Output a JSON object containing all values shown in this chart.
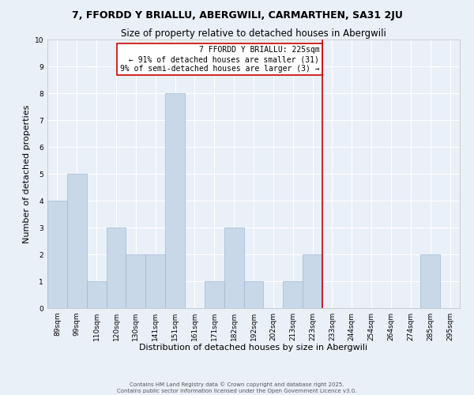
{
  "title": "7, FFORDD Y BRIALLU, ABERGWILI, CARMARTHEN, SA31 2JU",
  "subtitle": "Size of property relative to detached houses in Abergwili",
  "xlabel": "Distribution of detached houses by size in Abergwili",
  "ylabel": "Number of detached properties",
  "bins": [
    "89sqm",
    "99sqm",
    "110sqm",
    "120sqm",
    "130sqm",
    "141sqm",
    "151sqm",
    "161sqm",
    "171sqm",
    "182sqm",
    "192sqm",
    "202sqm",
    "213sqm",
    "223sqm",
    "233sqm",
    "244sqm",
    "254sqm",
    "264sqm",
    "274sqm",
    "285sqm",
    "295sqm"
  ],
  "values": [
    4,
    5,
    1,
    3,
    2,
    2,
    8,
    0,
    1,
    3,
    1,
    0,
    1,
    2,
    0,
    0,
    0,
    0,
    0,
    2,
    0
  ],
  "bar_color": "#c8d8e8",
  "bar_edge_color": "#a0b8d0",
  "vline_x": 13.5,
  "vline_color": "#cc0000",
  "annotation_title": "7 FFORDD Y BRIALLU: 225sqm",
  "annotation_line1": "← 91% of detached houses are smaller (31)",
  "annotation_line2": "9% of semi-detached houses are larger (3) →",
  "annotation_box_color": "#cc0000",
  "ylim": [
    0,
    10
  ],
  "yticks": [
    0,
    1,
    2,
    3,
    4,
    5,
    6,
    7,
    8,
    9,
    10
  ],
  "bg_color": "#eaf0f8",
  "grid_color": "#ffffff",
  "footer1": "Contains HM Land Registry data © Crown copyright and database right 2025.",
  "footer2": "Contains public sector information licensed under the Open Government Licence v3.0.",
  "title_fontsize": 9,
  "subtitle_fontsize": 8.5,
  "label_fontsize": 8,
  "tick_fontsize": 6.5,
  "annotation_fontsize": 7,
  "footer_fontsize": 5
}
